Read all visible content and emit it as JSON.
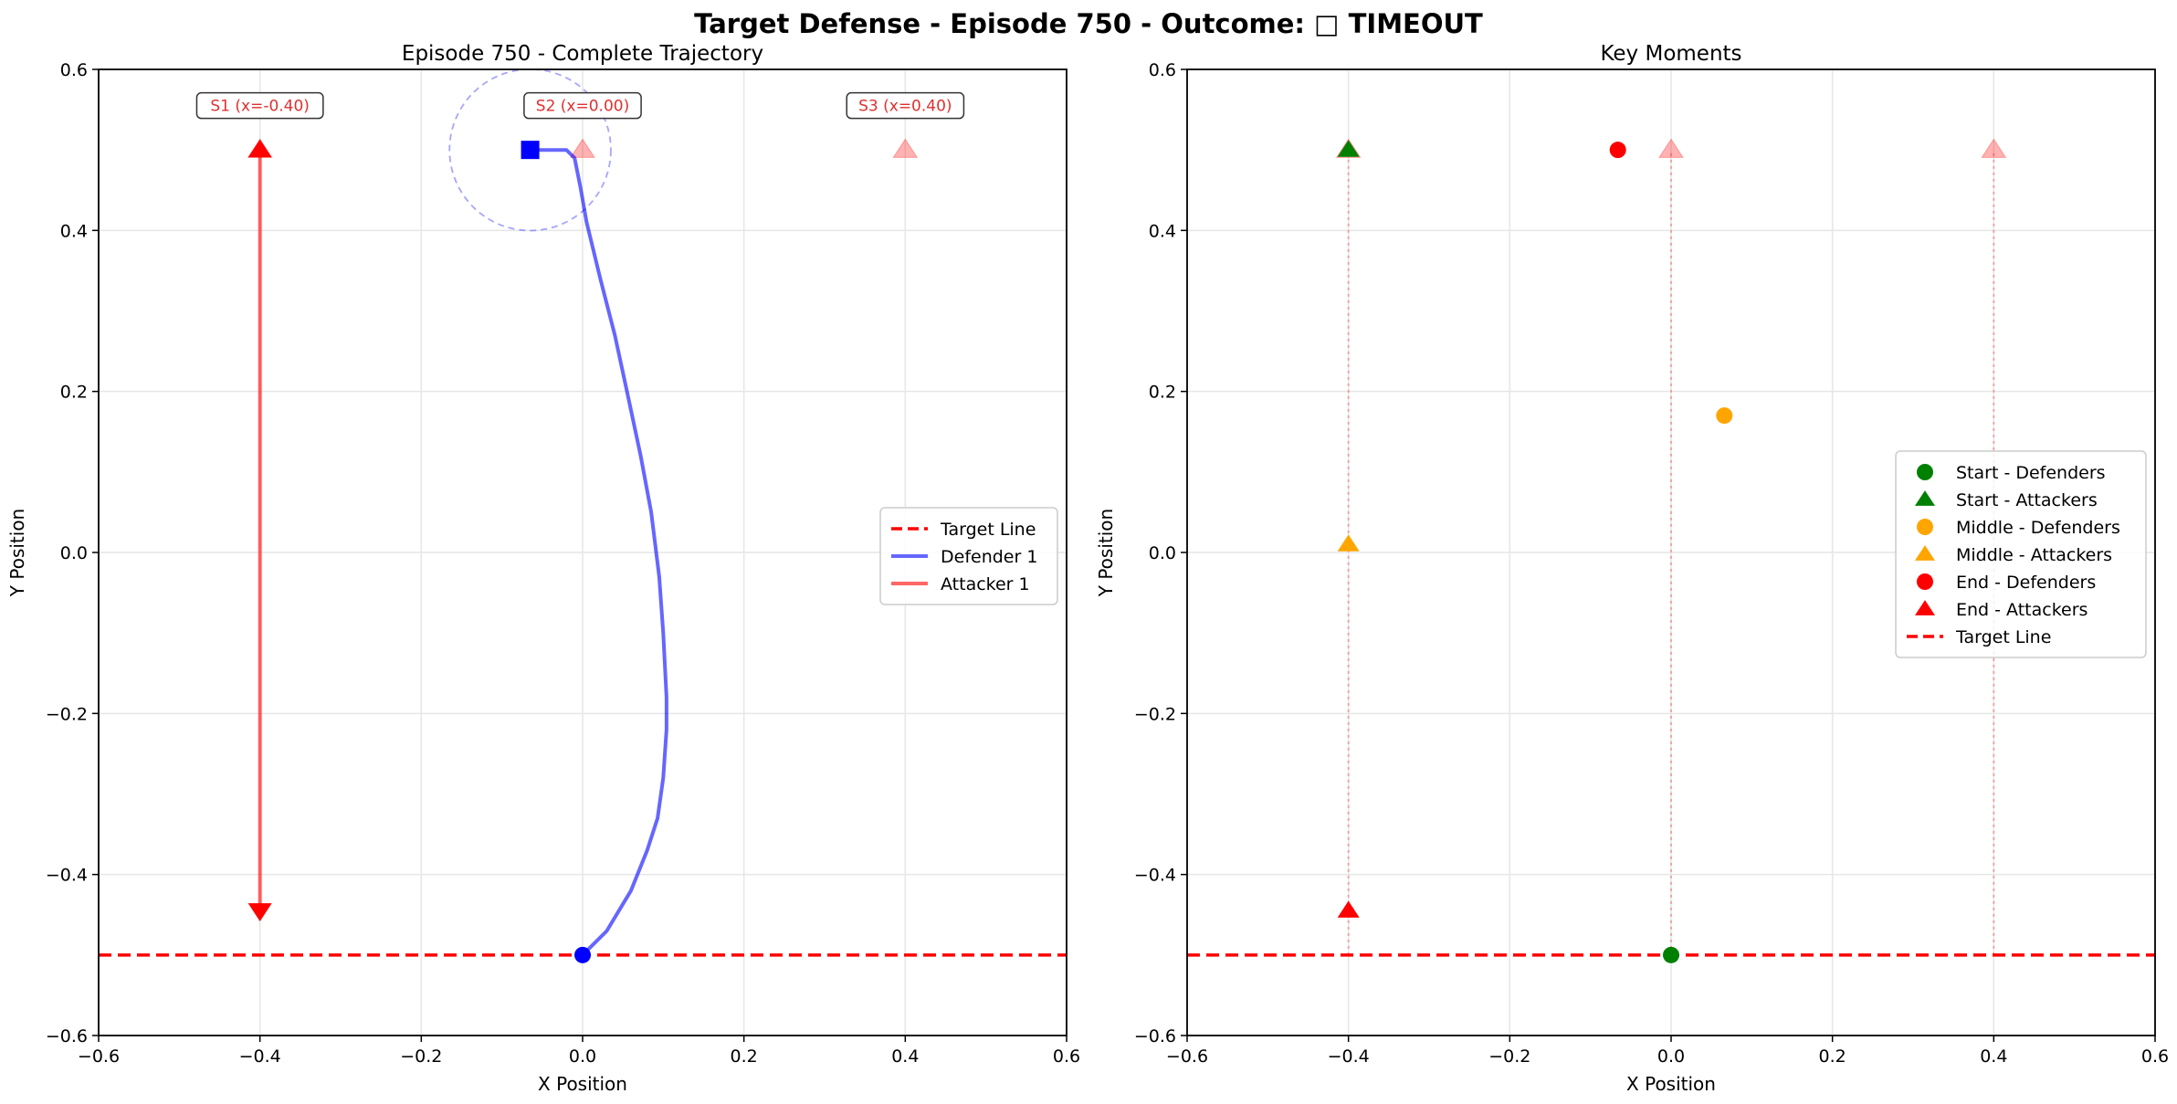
{
  "suptitle": "Target Defense - Episode 750 - Outcome: □ TIMEOUT",
  "chart_data": [
    {
      "type": "line",
      "title": "Episode 750 - Complete Trajectory",
      "xlabel": "X Position",
      "ylabel": "Y Position",
      "xlim": [
        -0.6,
        0.6
      ],
      "ylim": [
        -0.6,
        0.6
      ],
      "xticks": [
        -0.6,
        -0.4,
        -0.2,
        0.0,
        0.2,
        0.4,
        0.6
      ],
      "yticks": [
        -0.6,
        -0.4,
        -0.2,
        0.0,
        0.2,
        0.4,
        0.6
      ],
      "xtick_labels": [
        "−0.6",
        "−0.4",
        "−0.2",
        "0.0",
        "0.2",
        "0.4",
        "0.6"
      ],
      "ytick_labels": [
        "−0.6",
        "−0.4",
        "−0.2",
        "0.0",
        "0.2",
        "0.4",
        "0.6"
      ],
      "grid": true,
      "legend_position": "center-right",
      "target_line": {
        "y": -0.5,
        "color": "#ff0000",
        "style": "dashed",
        "name": "Target Line"
      },
      "series": [
        {
          "name": "Defender 1",
          "color": "#0000ff",
          "points": [
            [
              0.0,
              -0.5
            ],
            [
              0.03,
              -0.47
            ],
            [
              0.06,
              -0.42
            ],
            [
              0.08,
              -0.37
            ],
            [
              0.093,
              -0.33
            ],
            [
              0.1,
              -0.28
            ],
            [
              0.104,
              -0.22
            ],
            [
              0.104,
              -0.18
            ],
            [
              0.1,
              -0.1
            ],
            [
              0.095,
              -0.03
            ],
            [
              0.085,
              0.05
            ],
            [
              0.072,
              0.12
            ],
            [
              0.055,
              0.2
            ],
            [
              0.04,
              0.27
            ],
            [
              0.022,
              0.34
            ],
            [
              0.005,
              0.41
            ],
            [
              -0.003,
              0.455
            ],
            [
              -0.01,
              0.49
            ],
            [
              -0.02,
              0.5
            ],
            [
              -0.065,
              0.5
            ]
          ],
          "start_marker": "circle",
          "end_marker": "square",
          "capture_radius": 0.1
        },
        {
          "name": "Attacker 1",
          "color": "#ff0000",
          "points": [
            [
              -0.4,
              0.5
            ],
            [
              -0.4,
              -0.445
            ]
          ],
          "start_marker": "triangle-up",
          "end_marker": "triangle-down"
        }
      ],
      "spawn_markers": [
        {
          "x": -0.4,
          "y": 0.5
        },
        {
          "x": 0.0,
          "y": 0.5
        },
        {
          "x": 0.4,
          "y": 0.5
        }
      ],
      "annotations": [
        {
          "text": "S1 (x=-0.40)",
          "x": -0.4,
          "y": 0.555
        },
        {
          "text": "S2 (x=0.00)",
          "x": 0.0,
          "y": 0.555
        },
        {
          "text": "S3 (x=0.40)",
          "x": 0.4,
          "y": 0.555
        }
      ]
    },
    {
      "type": "scatter",
      "title": "Key Moments",
      "xlabel": "X Position",
      "ylabel": "Y Position",
      "xlim": [
        -0.6,
        0.6
      ],
      "ylim": [
        -0.6,
        0.6
      ],
      "xticks": [
        -0.6,
        -0.4,
        -0.2,
        0.0,
        0.2,
        0.4,
        0.6
      ],
      "yticks": [
        -0.6,
        -0.4,
        -0.2,
        0.0,
        0.2,
        0.4,
        0.6
      ],
      "xtick_labels": [
        "−0.6",
        "−0.4",
        "−0.2",
        "0.0",
        "0.2",
        "0.4",
        "0.6"
      ],
      "ytick_labels": [
        "−0.6",
        "−0.4",
        "−0.2",
        "0.0",
        "0.2",
        "0.4",
        "0.6"
      ],
      "grid": true,
      "legend_position": "center-right",
      "target_line": {
        "y": -0.5,
        "color": "#ff0000",
        "style": "dashed",
        "name": "Target Line"
      },
      "spawn_lines_x": [
        -0.4,
        0.0,
        0.4
      ],
      "spawn_markers": [
        {
          "x": -0.4,
          "y": 0.5
        },
        {
          "x": 0.0,
          "y": 0.5
        },
        {
          "x": 0.4,
          "y": 0.5
        }
      ],
      "series": [
        {
          "name": "Start - Defenders",
          "color": "#008000",
          "marker": "circle",
          "points": [
            [
              0.0,
              -0.5
            ]
          ]
        },
        {
          "name": "Start - Attackers",
          "color": "#008000",
          "marker": "triangle",
          "points": [
            [
              -0.4,
              0.5
            ]
          ]
        },
        {
          "name": "Middle - Defenders",
          "color": "#ffa500",
          "marker": "circle",
          "points": [
            [
              0.066,
              0.17
            ]
          ]
        },
        {
          "name": "Middle - Attackers",
          "color": "#ffa500",
          "marker": "triangle",
          "points": [
            [
              -0.4,
              0.01
            ]
          ]
        },
        {
          "name": "End - Defenders",
          "color": "#ff0000",
          "marker": "circle",
          "points": [
            [
              -0.066,
              0.5
            ]
          ]
        },
        {
          "name": "End - Attackers",
          "color": "#ff0000",
          "marker": "triangle",
          "points": [
            [
              -0.4,
              -0.445
            ]
          ]
        }
      ]
    }
  ]
}
